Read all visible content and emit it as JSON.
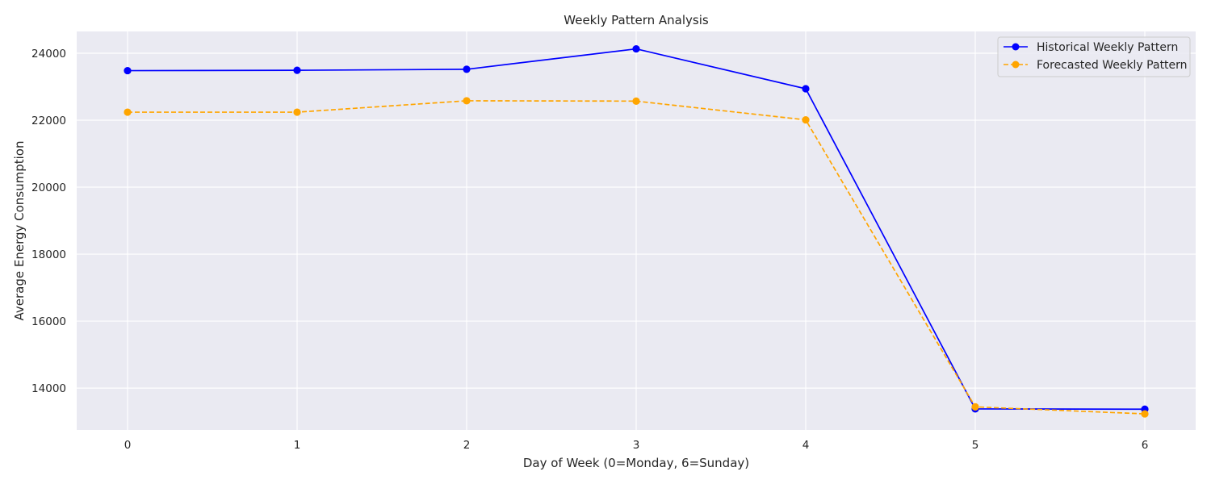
{
  "chart_data": {
    "type": "line",
    "title": "Weekly Pattern Analysis",
    "xlabel": "Day of Week (0=Monday, 6=Sunday)",
    "ylabel": "Average Energy Consumption",
    "x": [
      0,
      1,
      2,
      3,
      4,
      5,
      6
    ],
    "xlim": [
      -0.3,
      6.3
    ],
    "ylim": [
      12750,
      24650
    ],
    "xticks": [
      0,
      1,
      2,
      3,
      4,
      5,
      6
    ],
    "yticks": [
      14000,
      16000,
      18000,
      20000,
      22000,
      24000
    ],
    "grid": true,
    "legend_position": "top-right",
    "background": "#eaeaf2",
    "series": [
      {
        "name": "Historical Weekly Pattern",
        "values": [
          23480,
          23490,
          23520,
          24130,
          22940,
          13380,
          13370
        ],
        "color": "#0000ff",
        "linestyle": "solid",
        "marker": "circle"
      },
      {
        "name": "Forecasted Weekly Pattern",
        "values": [
          22240,
          22240,
          22580,
          22570,
          22010,
          13440,
          13230
        ],
        "color": "#ffa500",
        "linestyle": "dashed",
        "marker": "circle"
      }
    ]
  }
}
